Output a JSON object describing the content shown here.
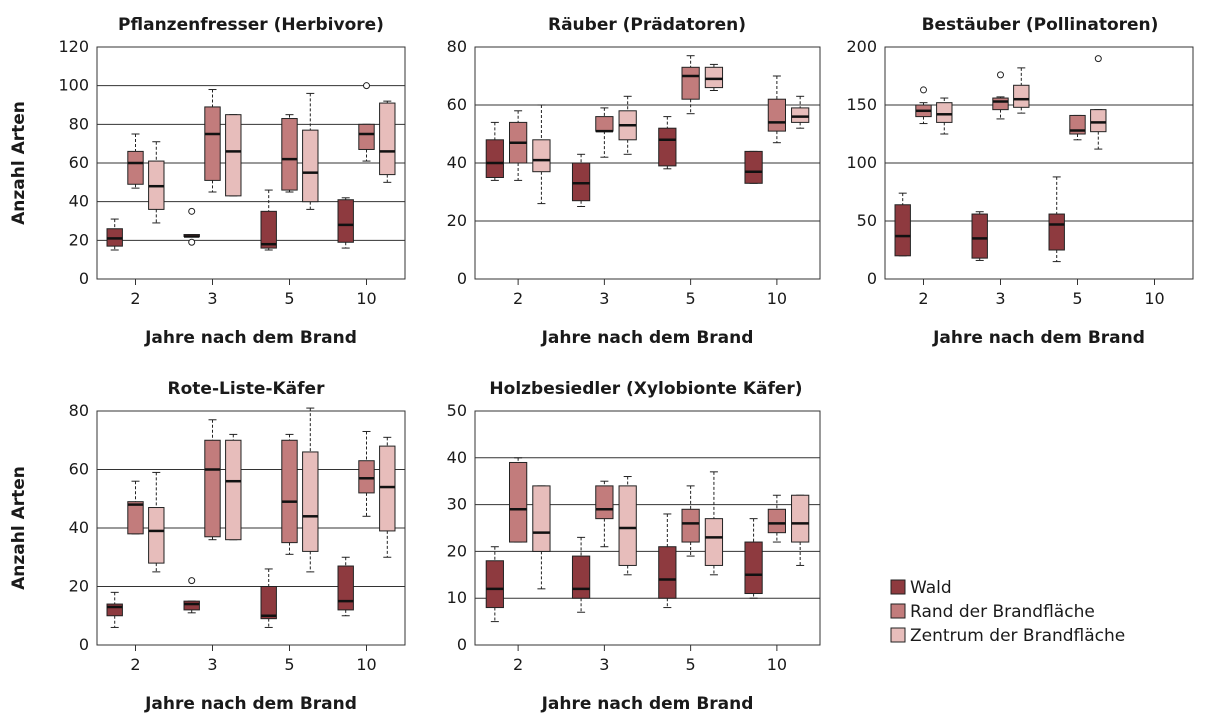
{
  "series_colors": {
    "Wald": "#8e3a3f",
    "Rand der Brandfläche": "#c27c7c",
    "Zentrum der Brandfläche": "#e7bdbb"
  },
  "legend": {
    "items": [
      "Wald",
      "Rand der Brandfläche",
      "Zentrum der Brandfläche"
    ]
  },
  "chart_data": [
    {
      "type": "boxplot",
      "title": "Pflanzenfresser (Herbivore)",
      "xlabel": "Jahre nach dem Brand",
      "ylabel": "Anzahl Arten",
      "categories": [
        "2",
        "3",
        "5",
        "10"
      ],
      "ylim": [
        0,
        120
      ],
      "yticks": [
        0,
        20,
        40,
        60,
        80,
        100,
        120
      ],
      "grid": true,
      "series": [
        {
          "name": "Wald",
          "boxes": [
            {
              "min": 15,
              "q1": 17,
              "median": 21,
              "q3": 26,
              "max": 31,
              "outliers": []
            },
            {
              "min": 22,
              "q1": 22,
              "median": 22,
              "q3": 23,
              "max": 23,
              "outliers": [
                35,
                19
              ]
            },
            {
              "min": 15,
              "q1": 16,
              "median": 18,
              "q3": 35,
              "max": 46,
              "outliers": []
            },
            {
              "min": 16,
              "q1": 19,
              "median": 28,
              "q3": 41,
              "max": 42,
              "outliers": []
            }
          ]
        },
        {
          "name": "Rand der Brandfläche",
          "boxes": [
            {
              "min": 47,
              "q1": 49,
              "median": 60,
              "q3": 66,
              "max": 75,
              "outliers": []
            },
            {
              "min": 45,
              "q1": 51,
              "median": 75,
              "q3": 89,
              "max": 98,
              "outliers": []
            },
            {
              "min": 45,
              "q1": 46,
              "median": 62,
              "q3": 83,
              "max": 85,
              "outliers": []
            },
            {
              "min": 61,
              "q1": 67,
              "median": 75,
              "q3": 80,
              "max": 80,
              "outliers": [
                100
              ]
            }
          ]
        },
        {
          "name": "Zentrum der Brandfläche",
          "boxes": [
            {
              "min": 29,
              "q1": 36,
              "median": 48,
              "q3": 61,
              "max": 71,
              "outliers": []
            },
            {
              "min": 43,
              "q1": 43,
              "median": 66,
              "q3": 85,
              "max": 85,
              "outliers": []
            },
            {
              "min": 36,
              "q1": 40,
              "median": 55,
              "q3": 77,
              "max": 96,
              "outliers": []
            },
            {
              "min": 50,
              "q1": 54,
              "median": 66,
              "q3": 91,
              "max": 92,
              "outliers": []
            }
          ]
        }
      ]
    },
    {
      "type": "boxplot",
      "title": "Räuber (Prädatoren)",
      "xlabel": "Jahre nach dem Brand",
      "ylabel": "",
      "categories": [
        "2",
        "3",
        "5",
        "10"
      ],
      "ylim": [
        0,
        80
      ],
      "yticks": [
        0,
        20,
        40,
        60,
        80
      ],
      "grid": true,
      "series": [
        {
          "name": "Wald",
          "boxes": [
            {
              "min": 34,
              "q1": 35,
              "median": 40,
              "q3": 48,
              "max": 54,
              "outliers": []
            },
            {
              "min": 25,
              "q1": 27,
              "median": 33,
              "q3": 40,
              "max": 43,
              "outliers": []
            },
            {
              "min": 38,
              "q1": 39,
              "median": 48,
              "q3": 52,
              "max": 56,
              "outliers": []
            },
            {
              "min": 33,
              "q1": 33,
              "median": 37,
              "q3": 44,
              "max": 44,
              "outliers": []
            }
          ]
        },
        {
          "name": "Rand der Brandfläche",
          "boxes": [
            {
              "min": 34,
              "q1": 40,
              "median": 47,
              "q3": 54,
              "max": 58,
              "outliers": []
            },
            {
              "min": 42,
              "q1": 51,
              "median": 51,
              "q3": 56,
              "max": 59,
              "outliers": []
            },
            {
              "min": 57,
              "q1": 62,
              "median": 70,
              "q3": 73,
              "max": 77,
              "outliers": []
            },
            {
              "min": 47,
              "q1": 51,
              "median": 54,
              "q3": 62,
              "max": 70,
              "outliers": []
            }
          ]
        },
        {
          "name": "Zentrum der Brandfläche",
          "boxes": [
            {
              "min": 26,
              "q1": 37,
              "median": 41,
              "q3": 48,
              "max": 60,
              "outliers": []
            },
            {
              "min": 43,
              "q1": 48,
              "median": 53,
              "q3": 58,
              "max": 63,
              "outliers": []
            },
            {
              "min": 65,
              "q1": 66,
              "median": 69,
              "q3": 73,
              "max": 74,
              "outliers": []
            },
            {
              "min": 52,
              "q1": 54,
              "median": 56,
              "q3": 59,
              "max": 63,
              "outliers": []
            }
          ]
        }
      ]
    },
    {
      "type": "boxplot",
      "title": "Bestäuber (Pollinatoren)",
      "xlabel": "Jahre nach dem Brand",
      "ylabel": "",
      "categories": [
        "2",
        "3",
        "5",
        "10"
      ],
      "ylim": [
        0,
        200
      ],
      "yticks": [
        0,
        50,
        100,
        150,
        200
      ],
      "grid": true,
      "series": [
        {
          "name": "Wald",
          "boxes": [
            {
              "min": 20,
              "q1": 20,
              "median": 37,
              "q3": 64,
              "max": 74,
              "outliers": []
            },
            {
              "min": 16,
              "q1": 18,
              "median": 35,
              "q3": 56,
              "max": 58,
              "outliers": []
            },
            {
              "min": 15,
              "q1": 25,
              "median": 47,
              "q3": 56,
              "max": 88,
              "outliers": []
            },
            null
          ]
        },
        {
          "name": "Rand der Brandfläche",
          "boxes": [
            {
              "min": 134,
              "q1": 140,
              "median": 145,
              "q3": 150,
              "max": 152,
              "outliers": [
                163
              ]
            },
            {
              "min": 138,
              "q1": 146,
              "median": 153,
              "q3": 156,
              "max": 157,
              "outliers": [
                176
              ]
            },
            {
              "min": 120,
              "q1": 125,
              "median": 128,
              "q3": 141,
              "max": 141,
              "outliers": []
            },
            null
          ]
        },
        {
          "name": "Zentrum der Brandfläche",
          "boxes": [
            {
              "min": 125,
              "q1": 135,
              "median": 142,
              "q3": 152,
              "max": 156,
              "outliers": []
            },
            {
              "min": 143,
              "q1": 148,
              "median": 155,
              "q3": 167,
              "max": 182,
              "outliers": []
            },
            {
              "min": 112,
              "q1": 127,
              "median": 135,
              "q3": 146,
              "max": 146,
              "outliers": [
                190
              ]
            },
            null
          ]
        }
      ]
    },
    {
      "type": "boxplot",
      "title": "Rote-Liste-Käfer",
      "xlabel": "Jahre nach dem Brand",
      "ylabel": "Anzahl Arten",
      "categories": [
        "2",
        "3",
        "5",
        "10"
      ],
      "ylim": [
        0,
        80
      ],
      "yticks": [
        0,
        20,
        40,
        60,
        80
      ],
      "grid": true,
      "series": [
        {
          "name": "Wald",
          "boxes": [
            {
              "min": 6,
              "q1": 10,
              "median": 13,
              "q3": 14,
              "max": 18,
              "outliers": []
            },
            {
              "min": 11,
              "q1": 12,
              "median": 14,
              "q3": 15,
              "max": 15,
              "outliers": [
                22
              ]
            },
            {
              "min": 6,
              "q1": 9,
              "median": 10,
              "q3": 20,
              "max": 26,
              "outliers": []
            },
            {
              "min": 10,
              "q1": 12,
              "median": 15,
              "q3": 27,
              "max": 30,
              "outliers": []
            }
          ]
        },
        {
          "name": "Rand der Brandfläche",
          "boxes": [
            {
              "min": 38,
              "q1": 38,
              "median": 48,
              "q3": 49,
              "max": 56,
              "outliers": []
            },
            {
              "min": 36,
              "q1": 37,
              "median": 60,
              "q3": 70,
              "max": 77,
              "outliers": []
            },
            {
              "min": 31,
              "q1": 35,
              "median": 49,
              "q3": 70,
              "max": 72,
              "outliers": []
            },
            {
              "min": 44,
              "q1": 52,
              "median": 57,
              "q3": 63,
              "max": 73,
              "outliers": []
            }
          ]
        },
        {
          "name": "Zentrum der Brandfläche",
          "boxes": [
            {
              "min": 25,
              "q1": 28,
              "median": 39,
              "q3": 47,
              "max": 59,
              "outliers": []
            },
            {
              "min": 36,
              "q1": 36,
              "median": 56,
              "q3": 70,
              "max": 72,
              "outliers": []
            },
            {
              "min": 25,
              "q1": 32,
              "median": 44,
              "q3": 66,
              "max": 81,
              "outliers": []
            },
            {
              "min": 30,
              "q1": 39,
              "median": 54,
              "q3": 68,
              "max": 71,
              "outliers": []
            }
          ]
        }
      ]
    },
    {
      "type": "boxplot",
      "title": "Holzbesiedler (Xylobionte Käfer)",
      "xlabel": "Jahre nach dem Brand",
      "ylabel": "",
      "categories": [
        "2",
        "3",
        "5",
        "10"
      ],
      "ylim": [
        0,
        50
      ],
      "yticks": [
        0,
        10,
        20,
        30,
        40,
        50
      ],
      "grid": true,
      "series": [
        {
          "name": "Wald",
          "boxes": [
            {
              "min": 5,
              "q1": 8,
              "median": 12,
              "q3": 18,
              "max": 21,
              "outliers": []
            },
            {
              "min": 7,
              "q1": 10,
              "median": 12,
              "q3": 19,
              "max": 23,
              "outliers": []
            },
            {
              "min": 8,
              "q1": 10,
              "median": 14,
              "q3": 21,
              "max": 28,
              "outliers": []
            },
            {
              "min": 10,
              "q1": 11,
              "median": 15,
              "q3": 22,
              "max": 27,
              "outliers": []
            }
          ]
        },
        {
          "name": "Rand der Brandfläche",
          "boxes": [
            {
              "min": 22,
              "q1": 22,
              "median": 29,
              "q3": 39,
              "max": 40,
              "outliers": []
            },
            {
              "min": 21,
              "q1": 27,
              "median": 29,
              "q3": 34,
              "max": 35,
              "outliers": []
            },
            {
              "min": 19,
              "q1": 22,
              "median": 26,
              "q3": 29,
              "max": 34,
              "outliers": []
            },
            {
              "min": 22,
              "q1": 24,
              "median": 26,
              "q3": 29,
              "max": 32,
              "outliers": []
            }
          ]
        },
        {
          "name": "Zentrum der Brandfläche",
          "boxes": [
            {
              "min": 12,
              "q1": 20,
              "median": 24,
              "q3": 34,
              "max": 34,
              "outliers": []
            },
            {
              "min": 15,
              "q1": 17,
              "median": 25,
              "q3": 34,
              "max": 36,
              "outliers": []
            },
            {
              "min": 15,
              "q1": 17,
              "median": 23,
              "q3": 27,
              "max": 37,
              "outliers": []
            },
            {
              "min": 17,
              "q1": 22,
              "median": 26,
              "q3": 32,
              "max": 32,
              "outliers": []
            }
          ]
        }
      ]
    }
  ]
}
